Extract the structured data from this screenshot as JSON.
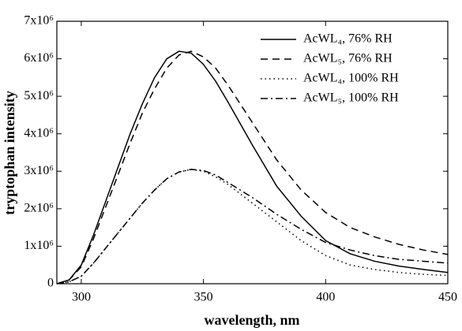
{
  "chart_data": {
    "type": "line",
    "xlabel": "wavelength, nm",
    "ylabel": "tryptophan intensity",
    "x": [
      290,
      295,
      300,
      305,
      310,
      315,
      320,
      325,
      330,
      335,
      340,
      345,
      350,
      355,
      360,
      370,
      380,
      390,
      400,
      410,
      420,
      430,
      440,
      450
    ],
    "series": [
      {
        "name": "AcWL₄,  76% RH",
        "color": "#000000",
        "dash": "none",
        "values": [
          0,
          100000,
          500000,
          1300000,
          2200000,
          3100000,
          4000000,
          4800000,
          5500000,
          6000000,
          6200000,
          6150000,
          5850000,
          5400000,
          4850000,
          3700000,
          2600000,
          1800000,
          1150000,
          800000,
          600000,
          470000,
          380000,
          300000
        ]
      },
      {
        "name": "AcWL₅,  76% RH",
        "color": "#000000",
        "dash": "9 6",
        "values": [
          0,
          100000,
          450000,
          1200000,
          2050000,
          2900000,
          3750000,
          4550000,
          5200000,
          5750000,
          6100000,
          6200000,
          6050000,
          5750000,
          5300000,
          4300000,
          3300000,
          2500000,
          1900000,
          1500000,
          1250000,
          1050000,
          900000,
          780000
        ]
      },
      {
        "name": "AcWL₄, 100% RH",
        "color": "#000000",
        "dash": "1.5 4",
        "values": [
          0,
          50000,
          200000,
          550000,
          950000,
          1350000,
          1750000,
          2150000,
          2500000,
          2800000,
          2980000,
          3050000,
          3000000,
          2850000,
          2650000,
          2150000,
          1650000,
          1150000,
          750000,
          500000,
          380000,
          300000,
          250000,
          220000
        ]
      },
      {
        "name": "AcWL₅, 100% RH",
        "color": "#000000",
        "dash": "9 4 2 4",
        "values": [
          0,
          50000,
          200000,
          550000,
          950000,
          1350000,
          1750000,
          2150000,
          2500000,
          2800000,
          2980000,
          3050000,
          3020000,
          2900000,
          2700000,
          2300000,
          1850000,
          1450000,
          1100000,
          900000,
          750000,
          650000,
          600000,
          550000
        ]
      }
    ],
    "xlim": [
      290,
      450
    ],
    "xticks": [
      300,
      350,
      400,
      450
    ],
    "ylim": [
      0,
      7000000
    ],
    "yticks": [
      0,
      {
        "value": 1000000,
        "label": "1x10⁶"
      },
      {
        "value": 2000000,
        "label": "2x10⁶"
      },
      {
        "value": 3000000,
        "label": "3x10⁶"
      },
      {
        "value": 4000000,
        "label": "4x10⁶"
      },
      {
        "value": 5000000,
        "label": "5x10⁶"
      },
      {
        "value": 6000000,
        "label": "6x10⁶"
      },
      {
        "value": 7000000,
        "label": "7x10⁶"
      }
    ],
    "legend": "upper right"
  }
}
